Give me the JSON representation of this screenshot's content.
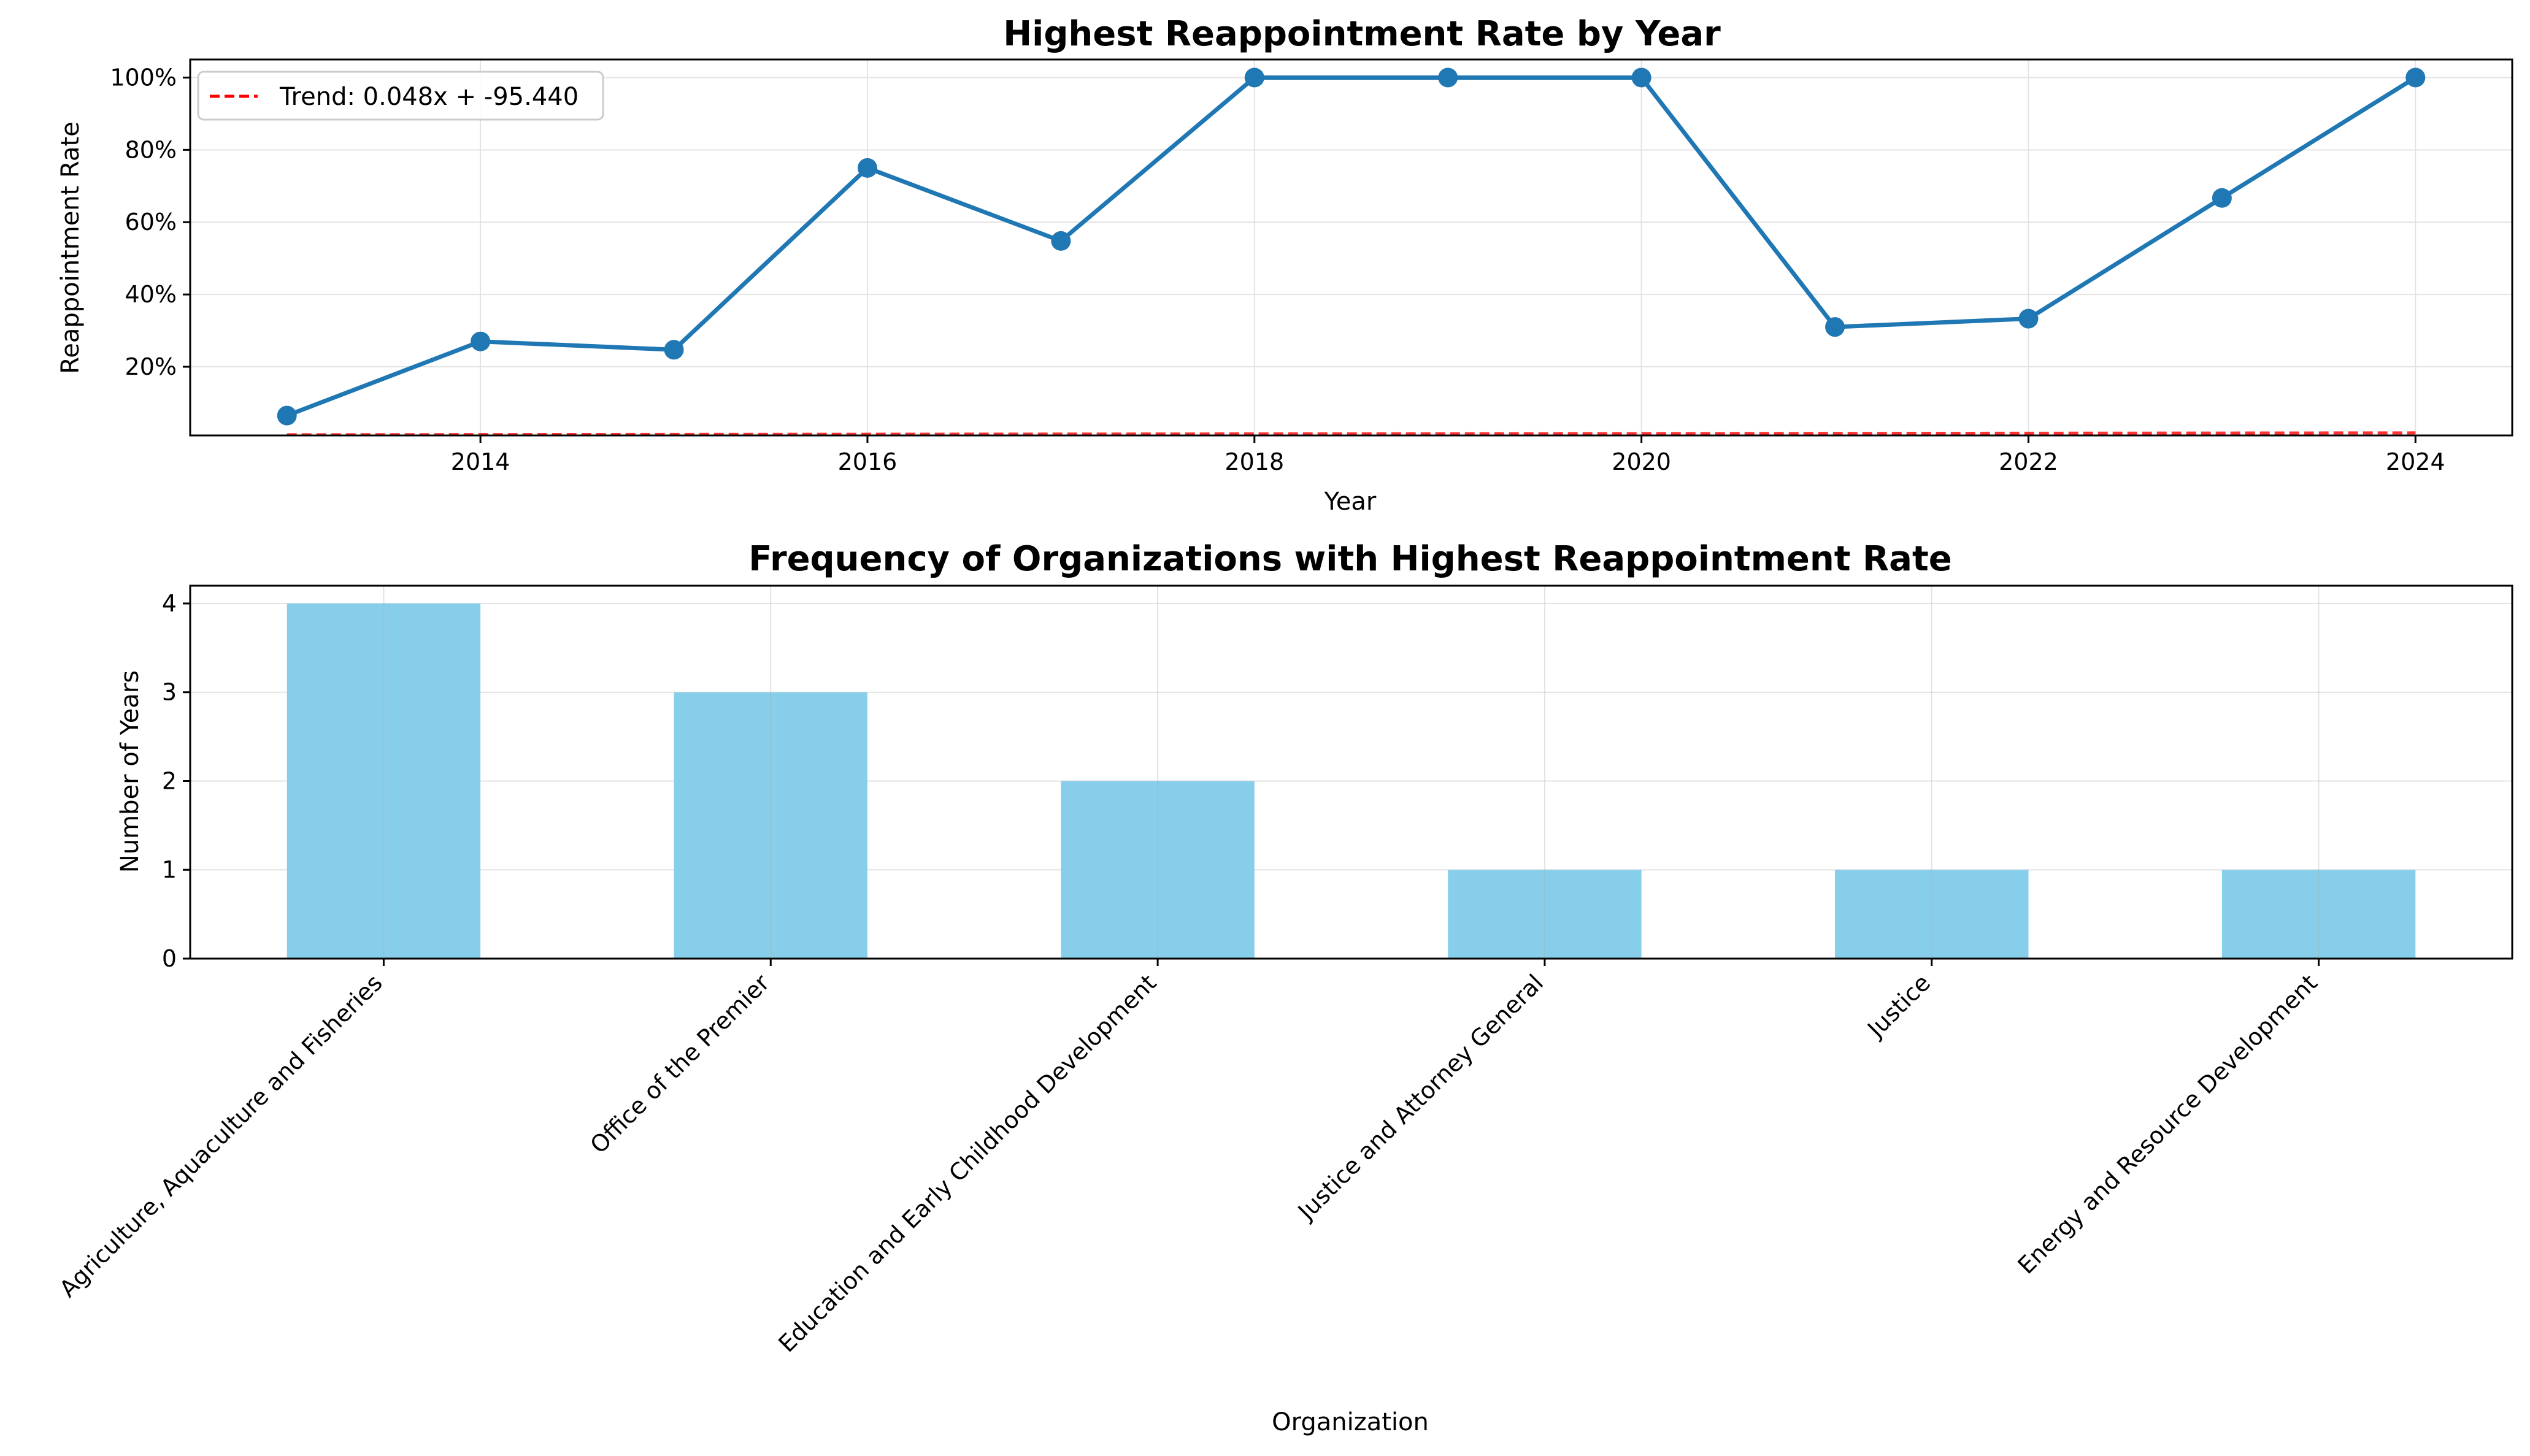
{
  "colors": {
    "line": "#1f77b4",
    "trend": "#ff0000",
    "bar": "#87ceeb",
    "grid": "#e3e3e3",
    "axis": "#000000"
  },
  "chart_data": [
    {
      "type": "line",
      "title": "Highest Reappointment Rate by Year",
      "xlabel": "Year",
      "ylabel": "Reappointment Rate",
      "xlim": [
        2012.5,
        2024.5
      ],
      "ylim": [
        0.01,
        1.05
      ],
      "x_ticks": [
        2014,
        2016,
        2018,
        2020,
        2022,
        2024
      ],
      "y_ticks": [
        0.2,
        0.4,
        0.6,
        0.8,
        1.0
      ],
      "y_tick_labels": [
        "20%",
        "40%",
        "60%",
        "80%",
        "100%"
      ],
      "grid": true,
      "series": [
        {
          "x": [
            2013,
            2014,
            2015,
            2016,
            2017,
            2018,
            2019,
            2020,
            2021,
            2022,
            2023,
            2024
          ],
          "values": [
            0.065,
            0.27,
            0.247,
            0.75,
            0.548,
            1.0,
            1.0,
            1.0,
            0.31,
            0.333,
            0.667,
            1.0
          ]
        }
      ],
      "trend": {
        "label": "Trend: 0.048x + -95.440",
        "slope": 0.048,
        "intercept": -95.44,
        "x_range": [
          2013,
          2024
        ]
      },
      "legend_position": "top-left"
    },
    {
      "type": "bar",
      "title": "Frequency of Organizations with Highest Reappointment Rate",
      "xlabel": "Organization",
      "ylabel": "Number of Years",
      "categories": [
        "Agriculture, Aquaculture and Fisheries",
        "Office of the Premier",
        "Education and Early Childhood Development",
        "Justice and Attorney General",
        "Justice",
        "Energy and Resource Development"
      ],
      "values": [
        4,
        3,
        2,
        1,
        1,
        1
      ],
      "ylim": [
        0,
        4.2
      ],
      "y_ticks": [
        0,
        1,
        2,
        3,
        4
      ],
      "grid": true
    }
  ]
}
